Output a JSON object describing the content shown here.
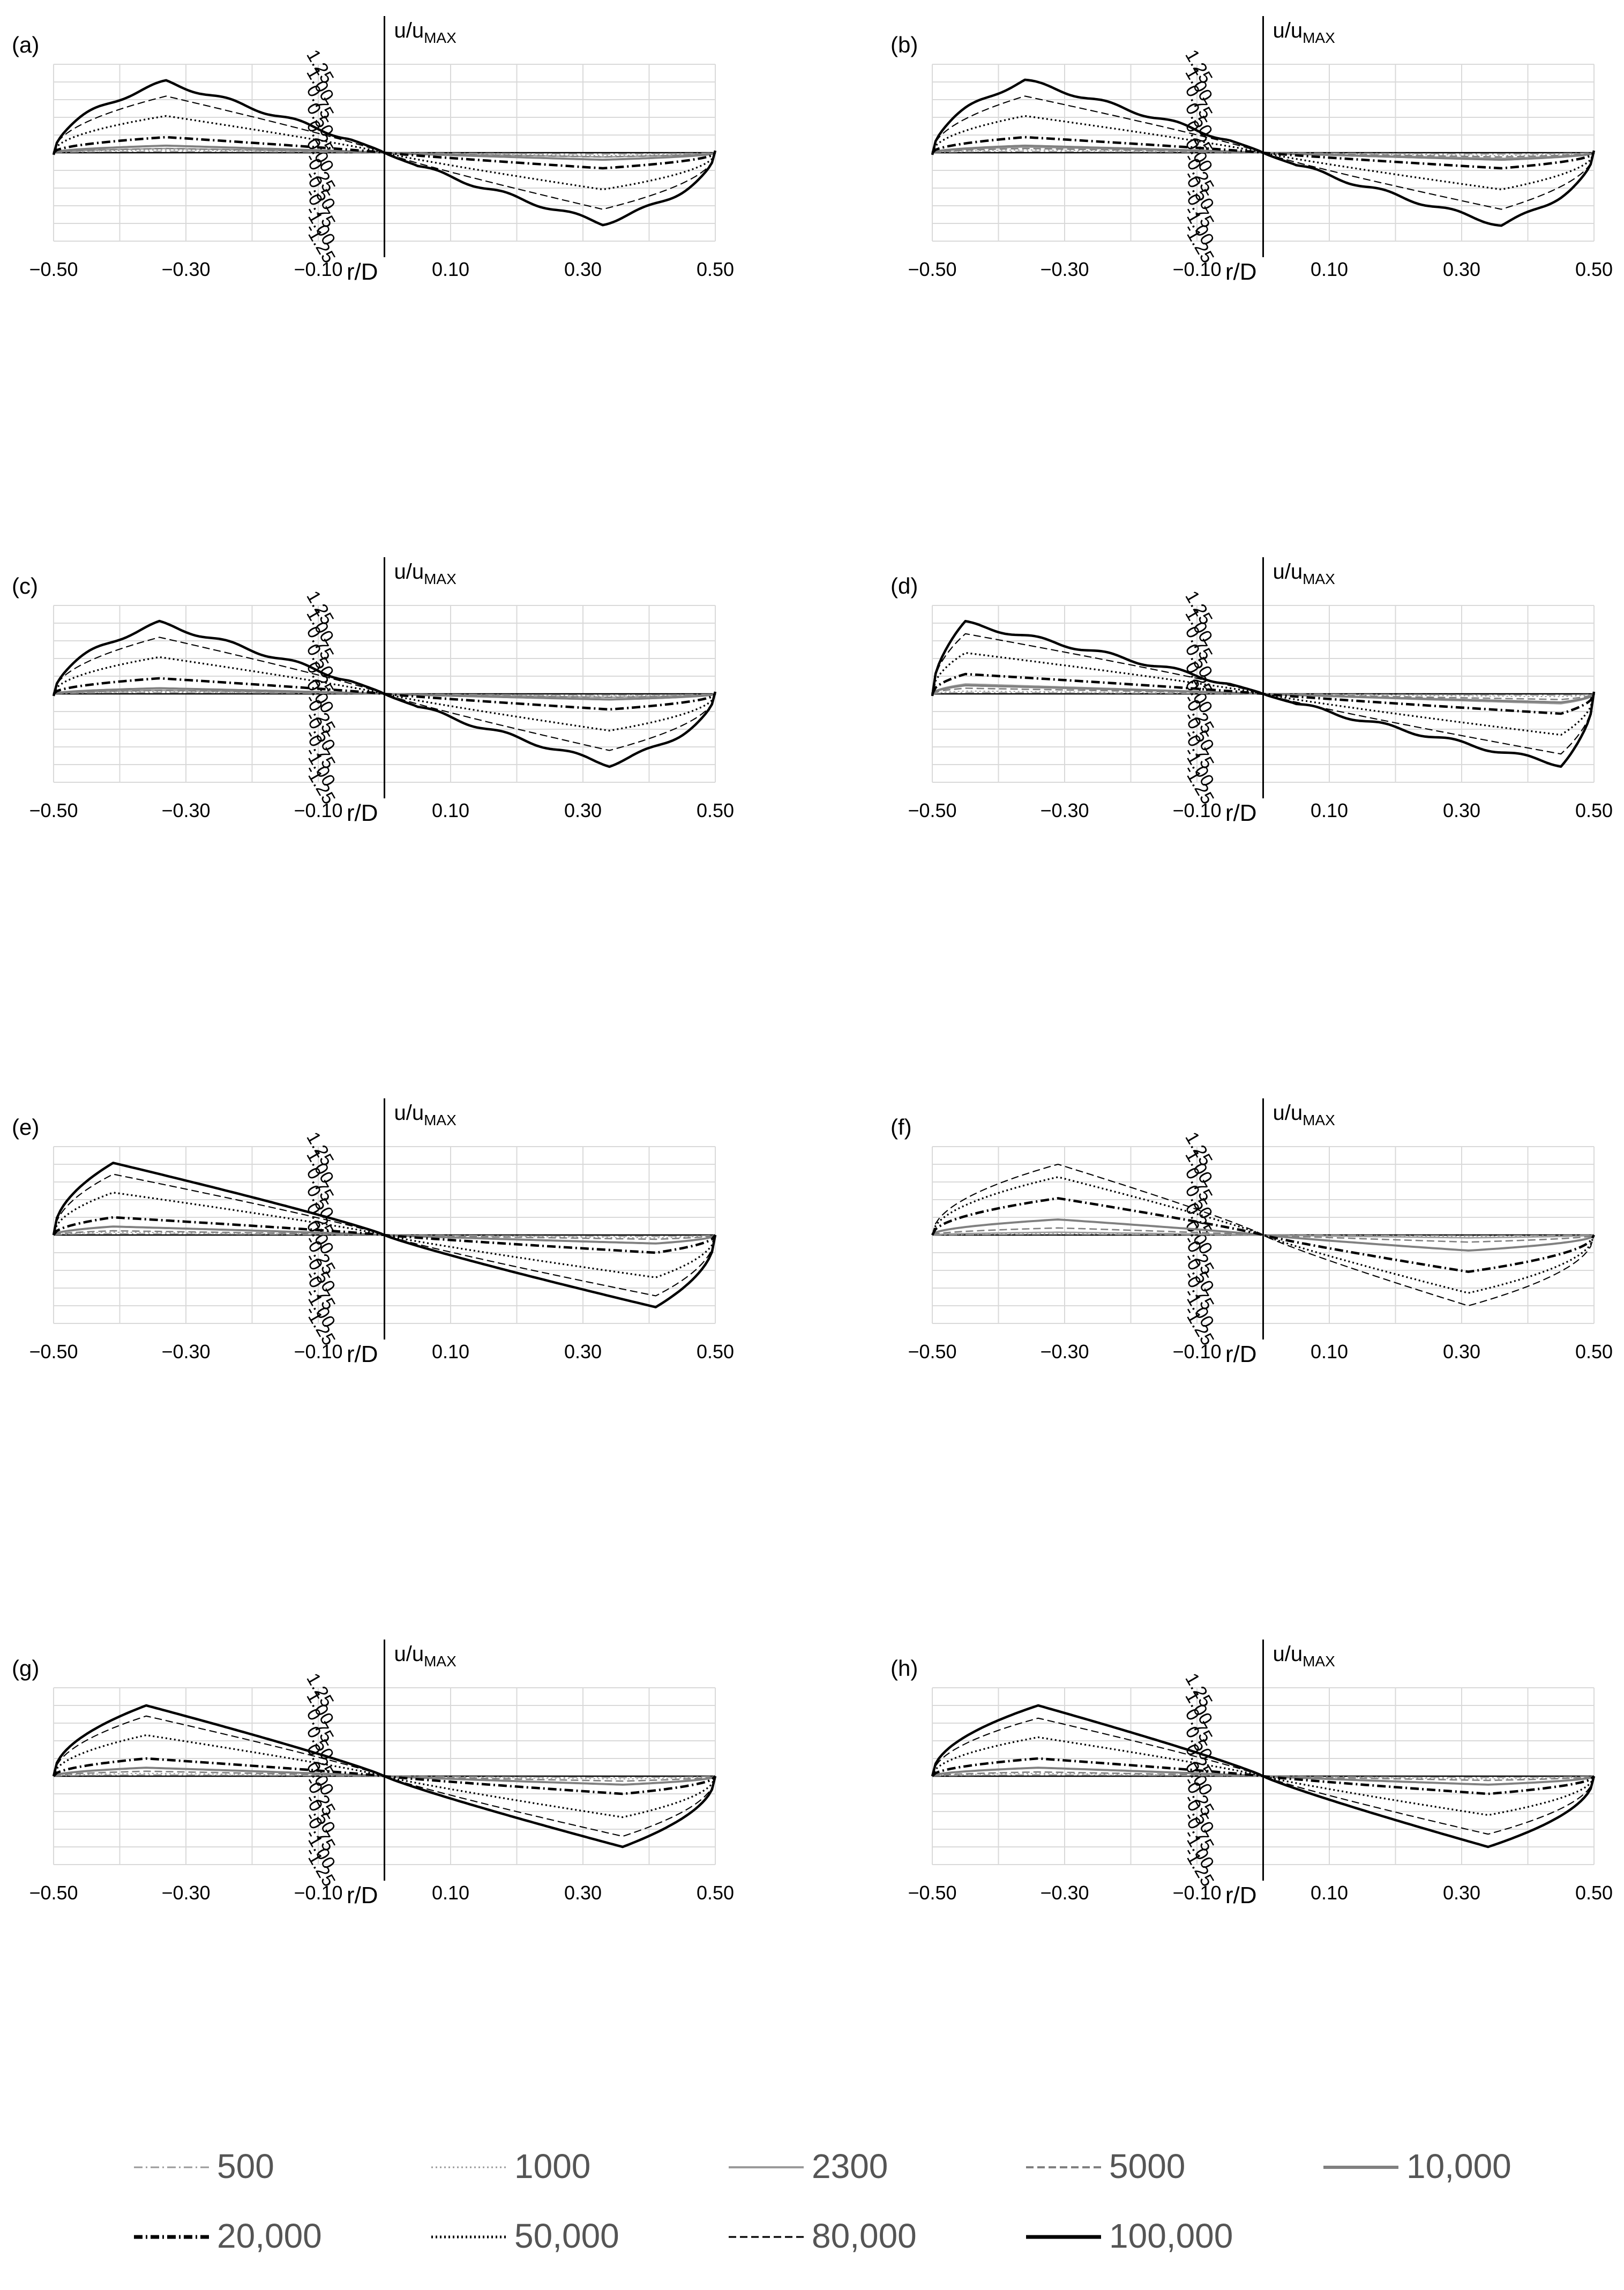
{
  "figure": {
    "shared_xticks": [
      "-0.50",
      "-0.30",
      "-0.10",
      "0.10",
      "0.30",
      "0.50"
    ],
    "shared_yticks": [
      "1.25",
      "1.00",
      "0.75",
      "0.50",
      "0.25",
      "0.00",
      "-0.25",
      "-0.50",
      "-0.75",
      "-1.00",
      "-1.25"
    ],
    "xlabel": "r/D",
    "ylabel_main": "u/u",
    "ylabel_sub": "MAX"
  },
  "legend": [
    {
      "label": "500",
      "color": "#9a9a9a",
      "style": "dashdot",
      "width": 1.5
    },
    {
      "label": "1000",
      "color": "#9a9a9a",
      "style": "dotted",
      "width": 1.5
    },
    {
      "label": "2300",
      "color": "#9a9a9a",
      "style": "solid",
      "width": 2
    },
    {
      "label": "5000",
      "color": "#808080",
      "style": "dashed",
      "width": 2
    },
    {
      "label": "10,000",
      "color": "#808080",
      "style": "solid",
      "width": 3
    },
    {
      "label": "20,000",
      "color": "#000000",
      "style": "dashdot",
      "width": 3.5
    },
    {
      "label": "50,000",
      "color": "#000000",
      "style": "dotted",
      "width": 2.5
    },
    {
      "label": "80,000",
      "color": "#000000",
      "style": "dashed",
      "width": 1.6
    },
    {
      "label": "100,000",
      "color": "#000000",
      "style": "solid",
      "width": 3.5
    }
  ],
  "chart_data": [
    {
      "panel": "(a)",
      "type": "line",
      "title": "",
      "xlabel": "r/D",
      "ylabel": "u/uMAX",
      "xlim": [
        -0.5,
        0.5
      ],
      "ylim": [
        -1.25,
        1.25
      ],
      "xticks": [
        "-0.50",
        "-0.30",
        "-0.10",
        "0.10",
        "0.30",
        "0.50"
      ],
      "series": [
        {
          "name": "500",
          "amp": 0.02,
          "skew": 0.33,
          "bumpy": false
        },
        {
          "name": "1000",
          "amp": 0.04,
          "skew": 0.33,
          "bumpy": false
        },
        {
          "name": "2300",
          "amp": 0.06,
          "skew": 0.33,
          "bumpy": false
        },
        {
          "name": "5000",
          "amp": 0.06,
          "skew": 0.33,
          "bumpy": false
        },
        {
          "name": "10,000",
          "amp": 0.1,
          "skew": 0.33,
          "bumpy": false
        },
        {
          "name": "20,000",
          "amp": 0.22,
          "skew": 0.33,
          "bumpy": false
        },
        {
          "name": "50,000",
          "amp": 0.52,
          "skew": 0.33,
          "bumpy": false
        },
        {
          "name": "80,000",
          "amp": 0.8,
          "skew": 0.33,
          "bumpy": false
        },
        {
          "name": "100,000",
          "amp": 1.0,
          "skew": 0.33,
          "bumpy": true
        }
      ]
    },
    {
      "panel": "(b)",
      "type": "line",
      "title": "",
      "xlabel": "r/D",
      "ylabel": "u/uMAX",
      "xlim": [
        -0.5,
        0.5
      ],
      "ylim": [
        -1.25,
        1.25
      ],
      "xticks": [
        "-0.50",
        "-0.30",
        "-0.10",
        "0.10",
        "0.30",
        "0.50"
      ],
      "series": [
        {
          "name": "500",
          "amp": 0.02,
          "skew": 0.36,
          "bumpy": false
        },
        {
          "name": "1000",
          "amp": 0.04,
          "skew": 0.36,
          "bumpy": false
        },
        {
          "name": "2300",
          "amp": 0.08,
          "skew": 0.36,
          "bumpy": false
        },
        {
          "name": "5000",
          "amp": 0.06,
          "skew": 0.36,
          "bumpy": false
        },
        {
          "name": "10,000",
          "amp": 0.1,
          "skew": 0.36,
          "bumpy": false
        },
        {
          "name": "20,000",
          "amp": 0.22,
          "skew": 0.36,
          "bumpy": false
        },
        {
          "name": "50,000",
          "amp": 0.52,
          "skew": 0.36,
          "bumpy": false
        },
        {
          "name": "80,000",
          "amp": 0.8,
          "skew": 0.36,
          "bumpy": false
        },
        {
          "name": "100,000",
          "amp": 1.02,
          "skew": 0.36,
          "bumpy": true
        }
      ]
    },
    {
      "panel": "(c)",
      "type": "line",
      "title": "",
      "xlabel": "r/D",
      "ylabel": "u/uMAX",
      "xlim": [
        -0.5,
        0.5
      ],
      "ylim": [
        -1.25,
        1.25
      ],
      "xticks": [
        "-0.50",
        "-0.30",
        "-0.10",
        "0.10",
        "0.30",
        "0.50"
      ],
      "series": [
        {
          "name": "500",
          "amp": 0.02,
          "skew": 0.34,
          "bumpy": false
        },
        {
          "name": "1000",
          "amp": 0.03,
          "skew": 0.34,
          "bumpy": false
        },
        {
          "name": "2300",
          "amp": 0.05,
          "skew": 0.34,
          "bumpy": false
        },
        {
          "name": "5000",
          "amp": 0.05,
          "skew": 0.34,
          "bumpy": false
        },
        {
          "name": "10,000",
          "amp": 0.08,
          "skew": 0.34,
          "bumpy": false
        },
        {
          "name": "20,000",
          "amp": 0.22,
          "skew": 0.34,
          "bumpy": false
        },
        {
          "name": "50,000",
          "amp": 0.52,
          "skew": 0.34,
          "bumpy": false
        },
        {
          "name": "80,000",
          "amp": 0.8,
          "skew": 0.34,
          "bumpy": false
        },
        {
          "name": "100,000",
          "amp": 1.0,
          "skew": 0.34,
          "bumpy": true
        }
      ]
    },
    {
      "panel": "(d)",
      "type": "line",
      "title": "",
      "xlabel": "r/D",
      "ylabel": "u/uMAX",
      "xlim": [
        -0.5,
        0.5
      ],
      "ylim": [
        -1.25,
        1.25
      ],
      "xticks": [
        "-0.50",
        "-0.30",
        "-0.10",
        "0.10",
        "0.30",
        "0.50"
      ],
      "series": [
        {
          "name": "500",
          "amp": 0.02,
          "skew": 0.45,
          "bumpy": false
        },
        {
          "name": "1000",
          "amp": 0.04,
          "skew": 0.45,
          "bumpy": false
        },
        {
          "name": "2300",
          "amp": 0.14,
          "skew": 0.45,
          "bumpy": false
        },
        {
          "name": "5000",
          "amp": 0.08,
          "skew": 0.45,
          "bumpy": false
        },
        {
          "name": "10,000",
          "amp": 0.12,
          "skew": 0.45,
          "bumpy": false
        },
        {
          "name": "20,000",
          "amp": 0.28,
          "skew": 0.45,
          "bumpy": false
        },
        {
          "name": "50,000",
          "amp": 0.58,
          "skew": 0.45,
          "bumpy": false
        },
        {
          "name": "80,000",
          "amp": 0.85,
          "skew": 0.45,
          "bumpy": false
        },
        {
          "name": "100,000",
          "amp": 1.0,
          "skew": 0.45,
          "bumpy": true
        }
      ]
    },
    {
      "panel": "(e)",
      "type": "line",
      "title": "",
      "xlabel": "r/D",
      "ylabel": "u/uMAX",
      "xlim": [
        -0.5,
        0.5
      ],
      "ylim": [
        -1.25,
        1.25
      ],
      "xticks": [
        "-0.50",
        "-0.30",
        "-0.10",
        "0.10",
        "0.30",
        "0.50"
      ],
      "series": [
        {
          "name": "500",
          "amp": 0.02,
          "skew": 0.41,
          "bumpy": false
        },
        {
          "name": "1000",
          "amp": 0.04,
          "skew": 0.41,
          "bumpy": false
        },
        {
          "name": "2300",
          "amp": 0.12,
          "skew": 0.41,
          "bumpy": false
        },
        {
          "name": "5000",
          "amp": 0.06,
          "skew": 0.41,
          "bumpy": false
        },
        {
          "name": "10,000",
          "amp": 0.12,
          "skew": 0.41,
          "bumpy": false
        },
        {
          "name": "20,000",
          "amp": 0.25,
          "skew": 0.41,
          "bumpy": false
        },
        {
          "name": "50,000",
          "amp": 0.6,
          "skew": 0.41,
          "bumpy": false
        },
        {
          "name": "80,000",
          "amp": 0.86,
          "skew": 0.41,
          "bumpy": false
        },
        {
          "name": "100,000",
          "amp": 1.02,
          "skew": 0.41,
          "bumpy": false
        }
      ]
    },
    {
      "panel": "(f)",
      "type": "line",
      "title": "",
      "xlabel": "r/D",
      "ylabel": "u/uMAX",
      "xlim": [
        -0.5,
        0.5
      ],
      "ylim": [
        -1.25,
        1.25
      ],
      "xticks": [
        "-0.50",
        "-0.30",
        "-0.10",
        "0.10",
        "0.30",
        "0.50"
      ],
      "series": [
        {
          "name": "500",
          "amp": 0.01,
          "skew": 0.31,
          "bumpy": false
        },
        {
          "name": "1000",
          "amp": 0.02,
          "skew": 0.31,
          "bumpy": false
        },
        {
          "name": "2300",
          "amp": 0.04,
          "skew": 0.31,
          "bumpy": false
        },
        {
          "name": "5000",
          "amp": 0.1,
          "skew": 0.31,
          "bumpy": false
        },
        {
          "name": "10,000",
          "amp": 0.22,
          "skew": 0.31,
          "bumpy": false
        },
        {
          "name": "20,000",
          "amp": 0.52,
          "skew": 0.31,
          "bumpy": false
        },
        {
          "name": "50,000",
          "amp": 0.82,
          "skew": 0.31,
          "bumpy": false
        },
        {
          "name": "80,000",
          "amp": 1.0,
          "skew": 0.31,
          "bumpy": false
        }
      ]
    },
    {
      "panel": "(g)",
      "type": "line",
      "title": "",
      "xlabel": "r/D",
      "ylabel": "u/uMAX",
      "xlim": [
        -0.5,
        0.5
      ],
      "ylim": [
        -1.25,
        1.25
      ],
      "xticks": [
        "-0.50",
        "-0.30",
        "-0.10",
        "0.10",
        "0.30",
        "0.50"
      ],
      "series": [
        {
          "name": "500",
          "amp": 0.02,
          "skew": 0.36,
          "bumpy": false
        },
        {
          "name": "1000",
          "amp": 0.04,
          "skew": 0.36,
          "bumpy": false
        },
        {
          "name": "2300",
          "amp": 0.12,
          "skew": 0.36,
          "bumpy": false
        },
        {
          "name": "5000",
          "amp": 0.07,
          "skew": 0.36,
          "bumpy": false
        },
        {
          "name": "10,000",
          "amp": 0.12,
          "skew": 0.36,
          "bumpy": false
        },
        {
          "name": "20,000",
          "amp": 0.25,
          "skew": 0.36,
          "bumpy": false
        },
        {
          "name": "50,000",
          "amp": 0.58,
          "skew": 0.36,
          "bumpy": false
        },
        {
          "name": "80,000",
          "amp": 0.85,
          "skew": 0.36,
          "bumpy": false
        },
        {
          "name": "100,000",
          "amp": 1.0,
          "skew": 0.36,
          "bumpy": false
        }
      ]
    },
    {
      "panel": "(h)",
      "type": "line",
      "title": "",
      "xlabel": "r/D",
      "ylabel": "u/uMAX",
      "xlim": [
        -0.5,
        0.5
      ],
      "ylim": [
        -1.25,
        1.25
      ],
      "xticks": [
        "-0.50",
        "-0.30",
        "-0.10",
        "0.10",
        "0.30",
        "0.50"
      ],
      "series": [
        {
          "name": "500",
          "amp": 0.02,
          "skew": 0.34,
          "bumpy": false
        },
        {
          "name": "1000",
          "amp": 0.04,
          "skew": 0.34,
          "bumpy": false
        },
        {
          "name": "2300",
          "amp": 0.12,
          "skew": 0.34,
          "bumpy": false
        },
        {
          "name": "5000",
          "amp": 0.06,
          "skew": 0.34,
          "bumpy": false
        },
        {
          "name": "10,000",
          "amp": 0.12,
          "skew": 0.34,
          "bumpy": false
        },
        {
          "name": "20,000",
          "amp": 0.25,
          "skew": 0.34,
          "bumpy": false
        },
        {
          "name": "50,000",
          "amp": 0.55,
          "skew": 0.34,
          "bumpy": false
        },
        {
          "name": "80,000",
          "amp": 0.82,
          "skew": 0.34,
          "bumpy": false
        },
        {
          "name": "100,000",
          "amp": 1.0,
          "skew": 0.34,
          "bumpy": false
        }
      ]
    }
  ]
}
